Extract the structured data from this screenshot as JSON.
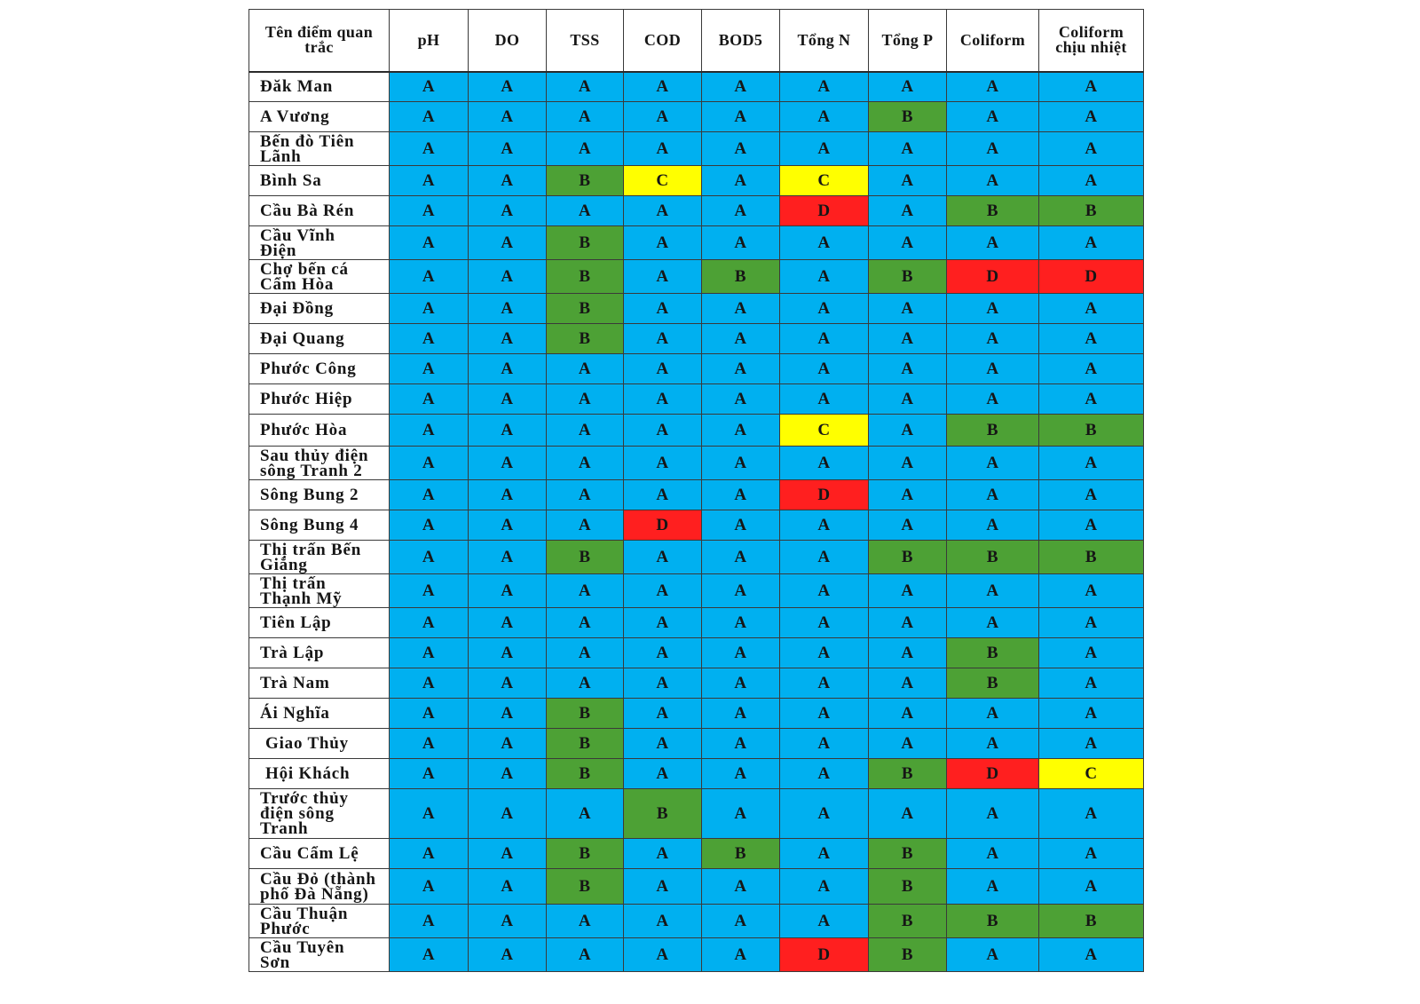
{
  "table": {
    "headers": [
      "Tên điểm quan trắc",
      "pH",
      "DO",
      "TSS",
      "COD",
      "BOD5",
      "Tổng N",
      "Tổng P",
      "Coliform",
      "Coliform chịu nhiệt"
    ],
    "rows": [
      {
        "name": "Đăk Man",
        "grades": [
          "A",
          "A",
          "A",
          "A",
          "A",
          "A",
          "A",
          "A",
          "A"
        ]
      },
      {
        "name": "A Vương",
        "grades": [
          "A",
          "A",
          "A",
          "A",
          "A",
          "A",
          "B",
          "A",
          "A"
        ]
      },
      {
        "name": "Bến đò Tiên Lãnh",
        "grades": [
          "A",
          "A",
          "A",
          "A",
          "A",
          "A",
          "A",
          "A",
          "A"
        ]
      },
      {
        "name": "Bình Sa",
        "grades": [
          "A",
          "A",
          "B",
          "C",
          "A",
          "C",
          "A",
          "A",
          "A"
        ]
      },
      {
        "name": "Cầu Bà Rén",
        "grades": [
          "A",
          "A",
          "A",
          "A",
          "A",
          "D",
          "A",
          "B",
          "B"
        ]
      },
      {
        "name": "Cầu Vĩnh Điện",
        "grades": [
          "A",
          "A",
          "B",
          "A",
          "A",
          "A",
          "A",
          "A",
          "A"
        ]
      },
      {
        "name": "Chợ bến cá Cẩm Hòa",
        "grades": [
          "A",
          "A",
          "B",
          "A",
          "B",
          "A",
          "B",
          "D",
          "D"
        ]
      },
      {
        "name": "Đại Đồng",
        "grades": [
          "A",
          "A",
          "B",
          "A",
          "A",
          "A",
          "A",
          "A",
          "A"
        ]
      },
      {
        "name": "Đại Quang",
        "grades": [
          "A",
          "A",
          "B",
          "A",
          "A",
          "A",
          "A",
          "A",
          "A"
        ]
      },
      {
        "name": "Phước Công",
        "grades": [
          "A",
          "A",
          "A",
          "A",
          "A",
          "A",
          "A",
          "A",
          "A"
        ]
      },
      {
        "name": "Phước Hiệp",
        "grades": [
          "A",
          "A",
          "A",
          "A",
          "A",
          "A",
          "A",
          "A",
          "A"
        ]
      },
      {
        "name": "Phước Hòa",
        "grades": [
          "A",
          "A",
          "A",
          "A",
          "A",
          "C",
          "A",
          "B",
          "B"
        ]
      },
      {
        "name": "Sau thủy điện sông Tranh 2",
        "grades": [
          "A",
          "A",
          "A",
          "A",
          "A",
          "A",
          "A",
          "A",
          "A"
        ]
      },
      {
        "name": "Sông Bung 2",
        "grades": [
          "A",
          "A",
          "A",
          "A",
          "A",
          "D",
          "A",
          "A",
          "A"
        ]
      },
      {
        "name": "Sông Bung 4",
        "grades": [
          "A",
          "A",
          "A",
          "D",
          "A",
          "A",
          "A",
          "A",
          "A"
        ]
      },
      {
        "name": "Thị trấn Bến Giằng",
        "grades": [
          "A",
          "A",
          "B",
          "A",
          "A",
          "A",
          "B",
          "B",
          "B"
        ]
      },
      {
        "name": "Thị trấn Thạnh Mỹ",
        "grades": [
          "A",
          "A",
          "A",
          "A",
          "A",
          "A",
          "A",
          "A",
          "A"
        ]
      },
      {
        "name": "Tiên Lập",
        "grades": [
          "A",
          "A",
          "A",
          "A",
          "A",
          "A",
          "A",
          "A",
          "A"
        ]
      },
      {
        "name": "Trà Lập",
        "grades": [
          "A",
          "A",
          "A",
          "A",
          "A",
          "A",
          "A",
          "B",
          "A"
        ]
      },
      {
        "name": "Trà Nam",
        "grades": [
          "A",
          "A",
          "A",
          "A",
          "A",
          "A",
          "A",
          "B",
          "A"
        ]
      },
      {
        "name": "Ái Nghĩa",
        "grades": [
          "A",
          "A",
          "B",
          "A",
          "A",
          "A",
          "A",
          "A",
          "A"
        ]
      },
      {
        "name": "Giao Thủy",
        "grades": [
          "A",
          "A",
          "B",
          "A",
          "A",
          "A",
          "A",
          "A",
          "A"
        ]
      },
      {
        "name": "Hội Khách",
        "grades": [
          "A",
          "A",
          "B",
          "A",
          "A",
          "A",
          "B",
          "D",
          "C"
        ]
      },
      {
        "name": "Trước thủy điện sông Tranh",
        "grades": [
          "A",
          "A",
          "A",
          "B",
          "A",
          "A",
          "A",
          "A",
          "A"
        ]
      },
      {
        "name": "Cầu Cẩm Lệ",
        "grades": [
          "A",
          "A",
          "B",
          "A",
          "B",
          "A",
          "B",
          "A",
          "A"
        ]
      },
      {
        "name": "Cầu Đỏ (thành phố Đà Nẵng)",
        "grades": [
          "A",
          "A",
          "B",
          "A",
          "A",
          "A",
          "B",
          "A",
          "A"
        ]
      },
      {
        "name": "Cầu Thuận Phước",
        "grades": [
          "A",
          "A",
          "A",
          "A",
          "A",
          "A",
          "B",
          "B",
          "B"
        ]
      },
      {
        "name": "Cầu Tuyên Sơn",
        "grades": [
          "A",
          "A",
          "A",
          "A",
          "A",
          "D",
          "B",
          "A",
          "A"
        ]
      }
    ]
  },
  "grade_colors": {
    "A": "#00B0F0",
    "B": "#4DA135",
    "C": "#FFFF00",
    "D": "#FF1F1F"
  }
}
